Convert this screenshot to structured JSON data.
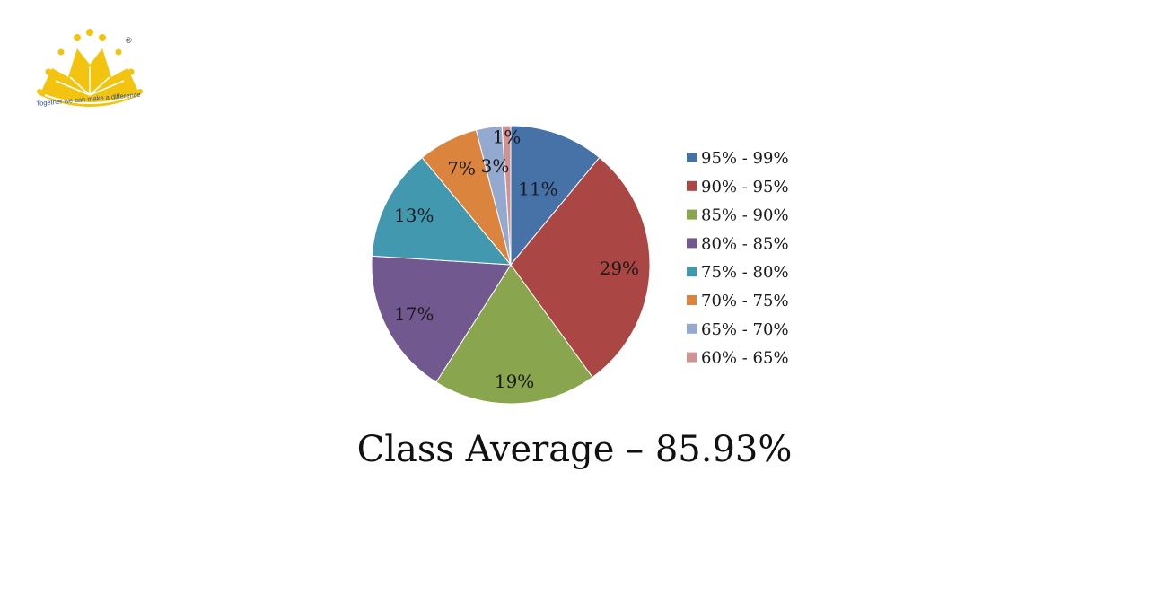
{
  "logo": {
    "icon": "sun-crown-logo",
    "registered_mark": "®",
    "tagline": "Together we can make a difference",
    "color": "#f2c40f"
  },
  "chart_data": {
    "type": "pie",
    "title": "",
    "categories": [
      "95% - 99%",
      "90% - 95%",
      "85% - 90%",
      "80% - 85%",
      "75% - 80%",
      "70% - 75%",
      "65% - 70%",
      "60% - 65%"
    ],
    "values": [
      11,
      29,
      19,
      17,
      13,
      7,
      3,
      1
    ],
    "labels": [
      "11%",
      "29%",
      "19%",
      "17%",
      "13%",
      "7%",
      "3%",
      "1%"
    ],
    "colors": [
      "#4672a8",
      "#aa4644",
      "#89a54e",
      "#71588f",
      "#4198af",
      "#db843d",
      "#93a9cf",
      "#d19392"
    ],
    "legend_position": "right",
    "start_angle": "12 o'clock",
    "direction": "clockwise"
  },
  "caption": "Class Average – 85.93%"
}
